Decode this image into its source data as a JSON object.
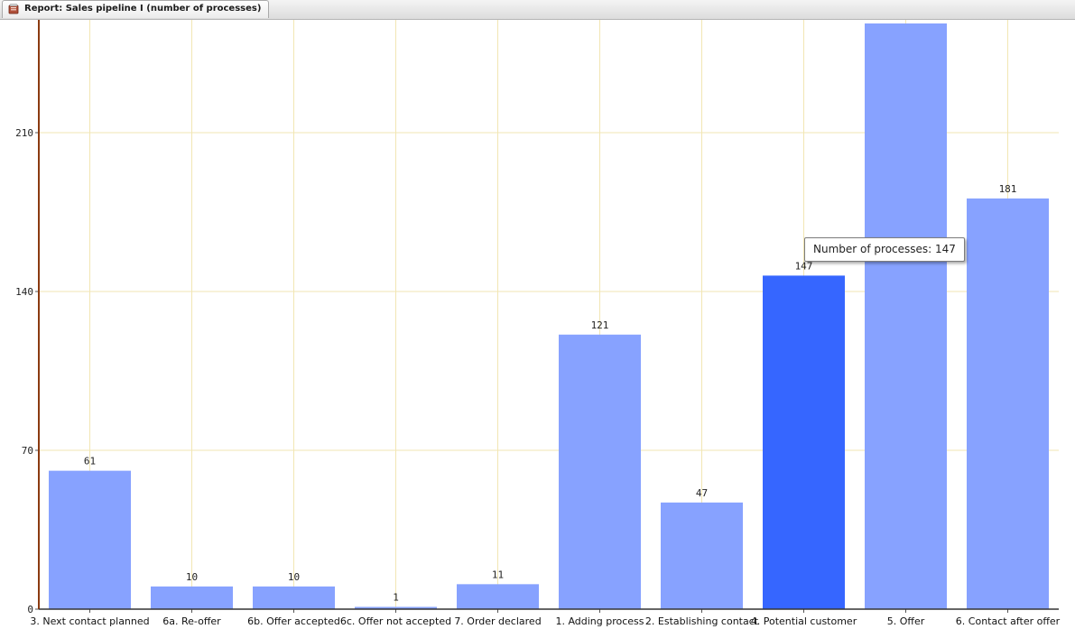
{
  "window": {
    "tab_title": "Report: Sales pipeline I (number of processes)",
    "tab_icon": "report-icon"
  },
  "tooltip": {
    "text": "Number of processes: 147"
  },
  "chart_data": {
    "type": "bar",
    "categories": [
      "3. Next contact planned",
      "6a. Re-offer",
      "6b. Offer accepted",
      "6c. Offer not accepted",
      "7. Order declared",
      "1. Adding process",
      "2. Establishing contact",
      "4. Potential customer",
      "5. Offer",
      "6. Contact after offer"
    ],
    "series": [
      {
        "name": "Number of processes",
        "values": [
          61,
          10,
          10,
          1,
          11,
          121,
          47,
          147,
          260,
          181
        ],
        "labels": [
          "61",
          "10",
          "10",
          "1",
          "11",
          "121",
          "47",
          "147",
          "",
          "181"
        ]
      }
    ],
    "highlighted_index": 7,
    "yticks": [
      "0",
      "70",
      "140",
      "210"
    ],
    "ytick_values": [
      0,
      70,
      140,
      210
    ],
    "ylim": [
      0,
      260
    ],
    "grid": true,
    "colors": {
      "bar": "#87a2ff",
      "bar_highlight": "#3666ff",
      "grid": "#f2e6b3",
      "y_axis": "#8b3a10",
      "x_axis": "#333333"
    }
  }
}
